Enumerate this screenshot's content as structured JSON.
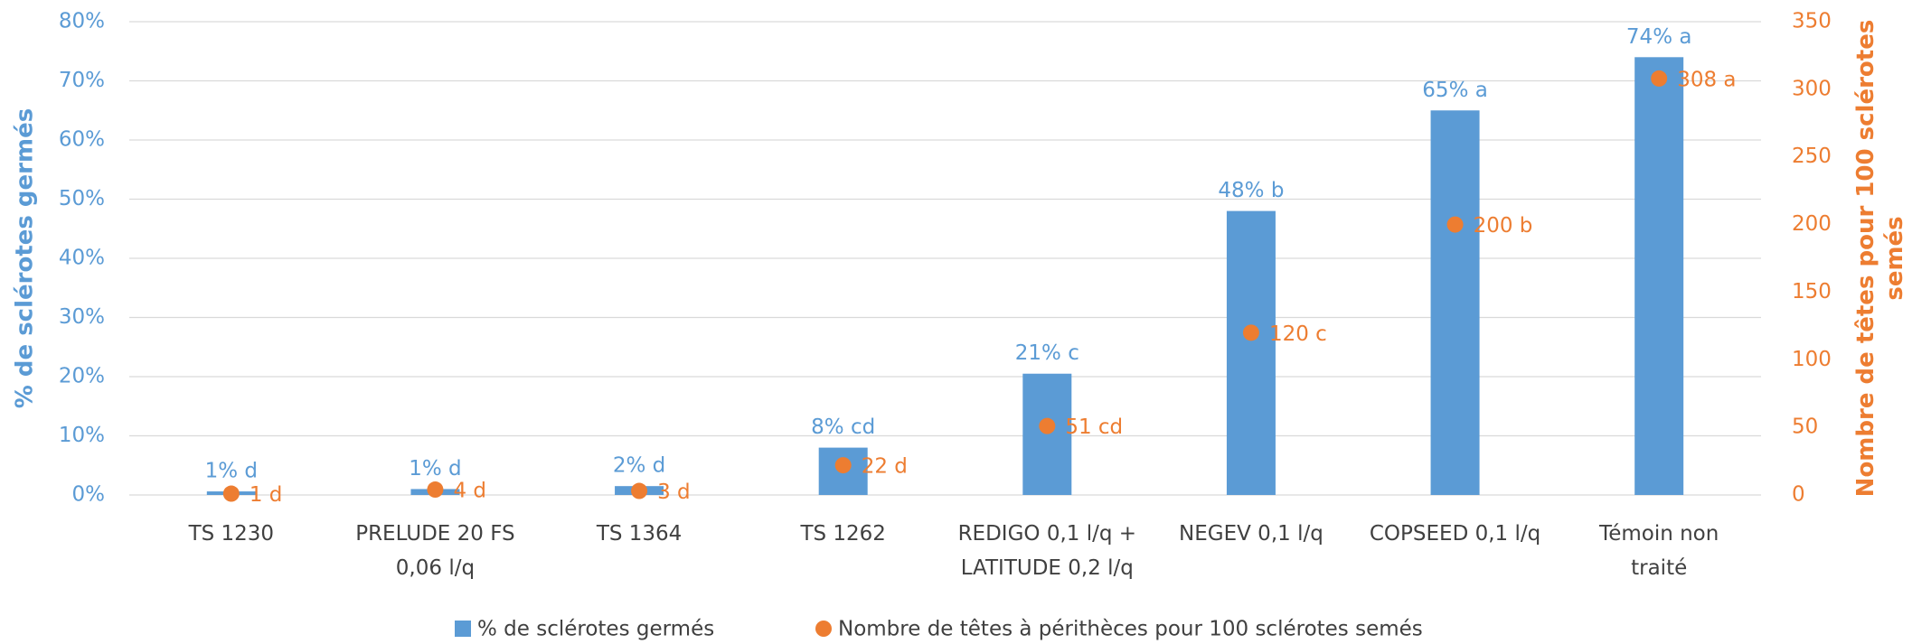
{
  "chart_data": {
    "type": "bar+scatter",
    "categories": [
      [
        "TS 1230"
      ],
      [
        "PRELUDE 20 FS",
        "0,06 l/q"
      ],
      [
        "TS 1364"
      ],
      [
        "TS 1262"
      ],
      [
        "REDIGO 0,1 l/q +",
        "LATITUDE 0,2 l/q"
      ],
      [
        "NEGEV 0,1 l/q"
      ],
      [
        "COPSEED 0,1 l/q"
      ],
      [
        "Témoin non",
        "traité"
      ]
    ],
    "series": [
      {
        "name": "% de sclérotes germés",
        "type": "bar",
        "color": "#5b9bd5",
        "axis": "y",
        "values": [
          0.6,
          1,
          1.5,
          8,
          20.5,
          48,
          65,
          74
        ],
        "value_labels": [
          "1% d",
          "1% d",
          "2% d",
          "8% cd",
          "21% c",
          "48% b",
          "65% a",
          "74% a"
        ]
      },
      {
        "name": "Nombre de têtes à périthèces pour 100 sclérotes semés",
        "type": "scatter",
        "color": "#ed7d31",
        "axis": "y2",
        "values": [
          1,
          4,
          3,
          22,
          51,
          120,
          200,
          308
        ],
        "value_labels": [
          "1 d",
          "4 d",
          "3 d",
          "22 d",
          "51 cd",
          "120 c",
          "200 b",
          "308 a"
        ]
      }
    ],
    "ylabel": "% de sclérotes germés",
    "y2label": [
      "Nombre de têtes pour 100 sclérotes",
      "semés"
    ],
    "ylim": [
      0,
      80
    ],
    "yticks": [
      {
        "value": 0,
        "label": "0%"
      },
      {
        "value": 10,
        "label": "10%"
      },
      {
        "value": 20,
        "label": "20%"
      },
      {
        "value": 30,
        "label": "30%"
      },
      {
        "value": 40,
        "label": "40%"
      },
      {
        "value": 50,
        "label": "50%"
      },
      {
        "value": 60,
        "label": "60%"
      },
      {
        "value": 70,
        "label": "70%"
      },
      {
        "value": 80,
        "label": "80%"
      }
    ],
    "y2lim": [
      0,
      350
    ],
    "y2ticks": [
      0,
      50,
      100,
      150,
      200,
      250,
      300,
      350
    ],
    "grid": true,
    "legend": "bottom"
  }
}
